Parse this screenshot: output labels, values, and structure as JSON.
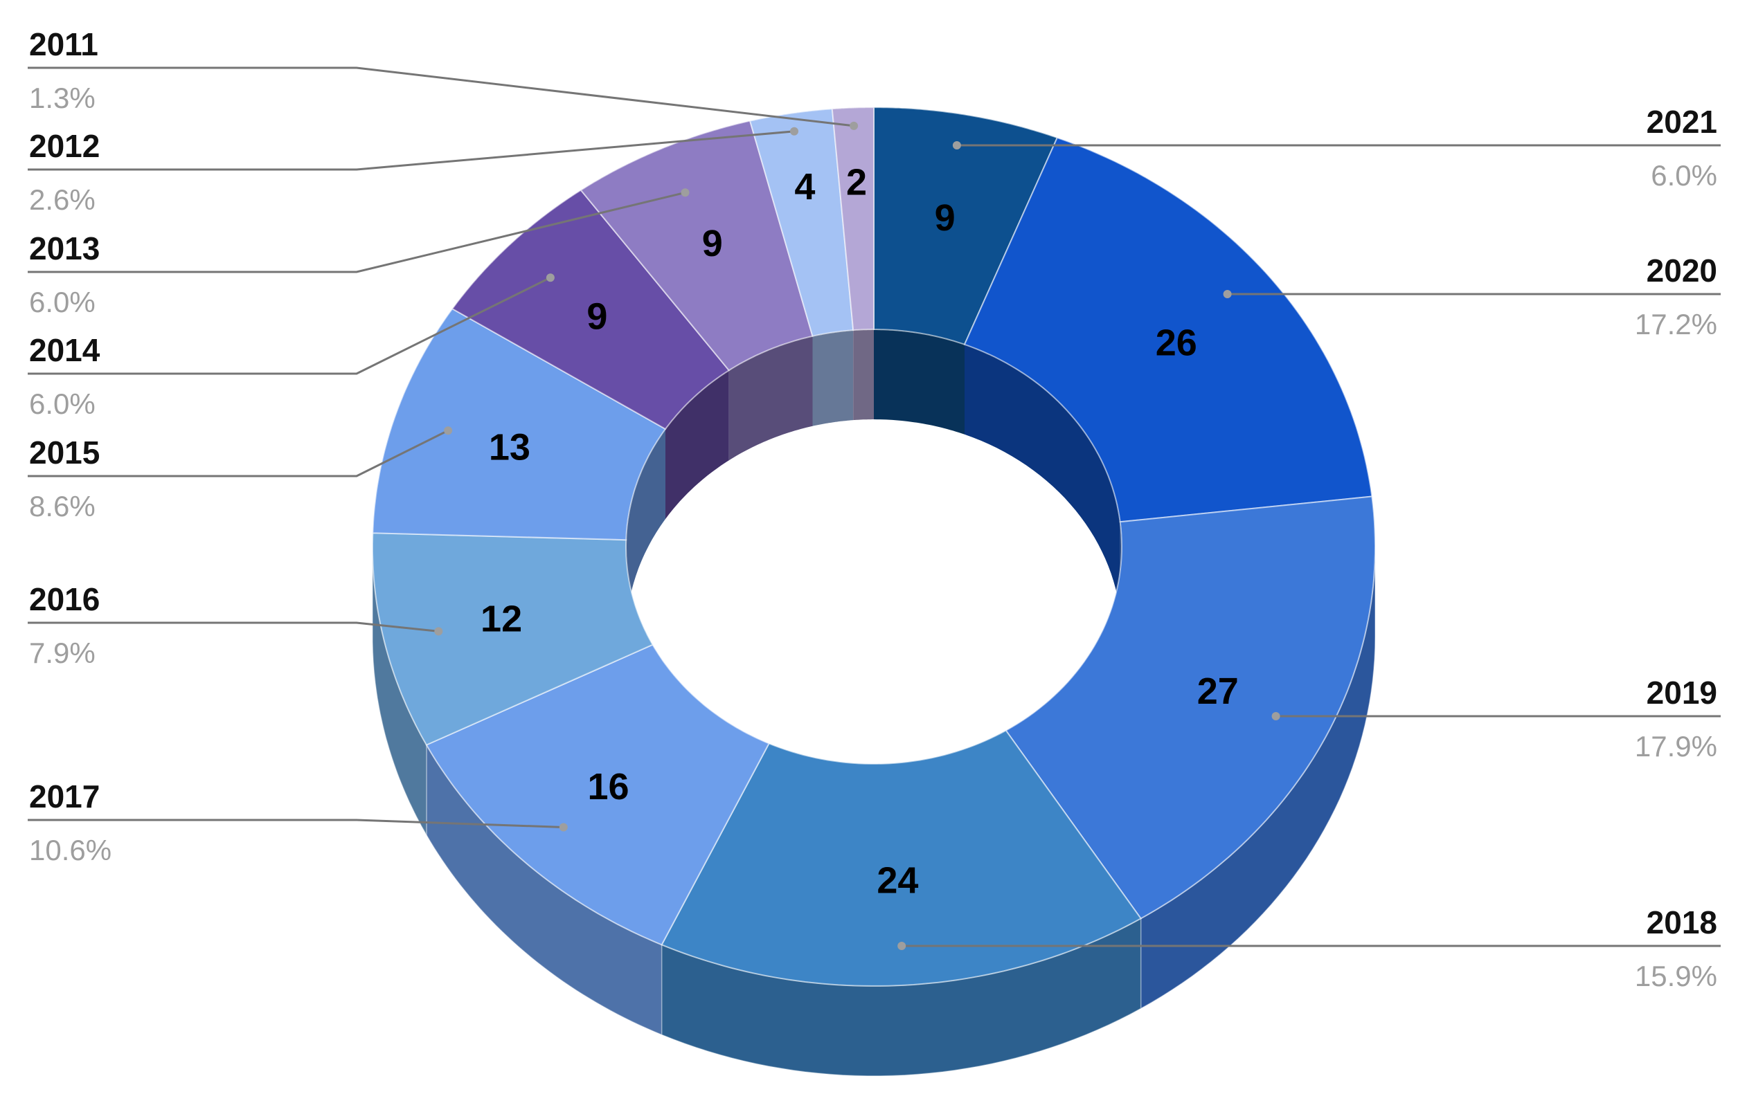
{
  "chart_data": {
    "type": "pie",
    "style": "3d-donut",
    "title": "",
    "slices": [
      {
        "label": "2021",
        "value": 9,
        "percent": "6.0%",
        "color": "#0d508f",
        "side": "right"
      },
      {
        "label": "2020",
        "value": 26,
        "percent": "17.2%",
        "color": "#1155cc",
        "side": "right"
      },
      {
        "label": "2019",
        "value": 27,
        "percent": "17.9%",
        "color": "#3c78d8",
        "side": "right"
      },
      {
        "label": "2018",
        "value": 24,
        "percent": "15.9%",
        "color": "#3d85c6",
        "side": "right"
      },
      {
        "label": "2017",
        "value": 16,
        "percent": "10.6%",
        "color": "#6d9eeb",
        "side": "left"
      },
      {
        "label": "2016",
        "value": 12,
        "percent": "7.9%",
        "color": "#6fa8dc",
        "side": "left"
      },
      {
        "label": "2015",
        "value": 13,
        "percent": "8.6%",
        "color": "#6d9eeb",
        "side": "left"
      },
      {
        "label": "2014",
        "value": 9,
        "percent": "6.0%",
        "color": "#674ea7",
        "side": "left"
      },
      {
        "label": "2013",
        "value": 9,
        "percent": "6.0%",
        "color": "#8e7cc3",
        "side": "left"
      },
      {
        "label": "2012",
        "value": 4,
        "percent": "2.6%",
        "color": "#a4c2f4",
        "side": "left"
      },
      {
        "label": "2011",
        "value": 2,
        "percent": "1.3%",
        "color": "#b4a7d6",
        "side": "left"
      }
    ],
    "legend": "leader-lines"
  }
}
